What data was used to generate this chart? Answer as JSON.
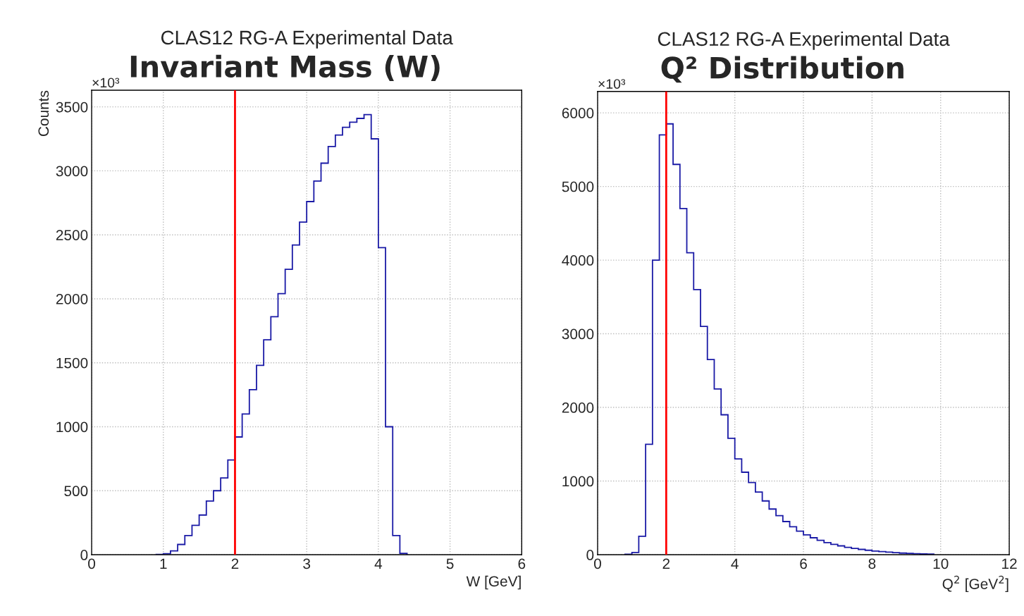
{
  "chart_data": [
    {
      "type": "histogram",
      "subtitle": "CLAS12 RG-A Experimental Data",
      "title": "Invariant Mass (W)",
      "xlabel": "W [GeV]",
      "ylabel": "Counts",
      "annotations": [
        "×10³"
      ],
      "bins": [
        0.9,
        1.0,
        1.1,
        1.2,
        1.3,
        1.4,
        1.5,
        1.6,
        1.7,
        1.8,
        1.9,
        2.0,
        2.1,
        2.2,
        2.3,
        2.4,
        2.5,
        2.6,
        2.7,
        2.8,
        2.9,
        3.0,
        3.1,
        3.2,
        3.3,
        3.4,
        3.5,
        3.6,
        3.7,
        3.8,
        3.9,
        4.0,
        4.1,
        4.2,
        4.3,
        4.4
      ],
      "values": [
        2,
        8,
        30,
        80,
        150,
        230,
        310,
        420,
        500,
        600,
        740,
        920,
        1100,
        1290,
        1480,
        1680,
        1860,
        2040,
        2230,
        2420,
        2600,
        2760,
        2920,
        3060,
        3190,
        3280,
        3340,
        3380,
        3410,
        3440,
        3250,
        2400,
        1000,
        150,
        10
      ],
      "color": "#1a1aa6",
      "xlim": [
        0,
        6
      ],
      "xticks": [
        0,
        1,
        2,
        3,
        4,
        5,
        6
      ],
      "ylim": [
        0,
        3630
      ],
      "yticks": [
        0,
        500,
        1000,
        1500,
        2000,
        2500,
        3000,
        3500
      ],
      "grid": true,
      "ref_lines": [
        {
          "axis": "x",
          "value": 2,
          "color": "#ff0000"
        }
      ]
    },
    {
      "type": "histogram",
      "subtitle": "CLAS12 RG-A Experimental Data",
      "title": "Q² Distribution",
      "xlabel": "Q$^{2}$ [GeV$^{2}$]",
      "annotations": [
        "×10³"
      ],
      "bins": [
        0.8,
        1.0,
        1.2,
        1.4,
        1.6,
        1.8,
        2.0,
        2.2,
        2.4,
        2.6,
        2.8,
        3.0,
        3.2,
        3.4,
        3.6,
        3.8,
        4.0,
        4.2,
        4.4,
        4.6,
        4.8,
        5.0,
        5.2,
        5.4,
        5.6,
        5.8,
        6.0,
        6.2,
        6.4,
        6.6,
        6.8,
        7.0,
        7.2,
        7.4,
        7.6,
        7.8,
        8.0,
        8.2,
        8.4,
        8.6,
        8.8,
        9.0,
        9.2,
        9.4,
        9.6,
        9.8
      ],
      "values": [
        5,
        30,
        250,
        1500,
        4000,
        5700,
        5850,
        5300,
        4700,
        4100,
        3600,
        3100,
        2650,
        2250,
        1900,
        1580,
        1300,
        1120,
        980,
        850,
        730,
        620,
        530,
        450,
        380,
        320,
        270,
        230,
        195,
        165,
        140,
        120,
        100,
        85,
        72,
        60,
        50,
        42,
        35,
        28,
        22,
        18,
        14,
        10,
        8
      ],
      "color": "#1a1aa6",
      "xlim": [
        0,
        12
      ],
      "xticks": [
        0,
        2,
        4,
        6,
        8,
        10,
        12
      ],
      "ylim": [
        0,
        6290
      ],
      "yticks": [
        0,
        1000,
        2000,
        3000,
        4000,
        5000,
        6000
      ],
      "grid": true,
      "ref_lines": [
        {
          "axis": "x",
          "value": 2,
          "color": "#ff0000"
        }
      ]
    }
  ]
}
